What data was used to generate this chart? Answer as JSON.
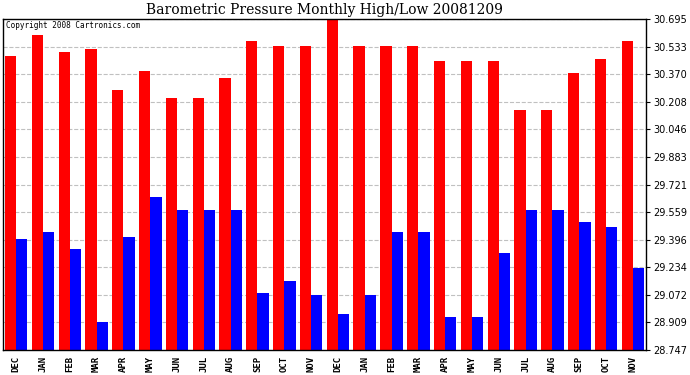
{
  "title": "Barometric Pressure Monthly High/Low 20081209",
  "copyright": "Copyright 2008 Cartronics.com",
  "months": [
    "DEC",
    "JAN",
    "FEB",
    "MAR",
    "APR",
    "MAY",
    "JUN",
    "JUL",
    "AUG",
    "SEP",
    "OCT",
    "NOV",
    "DEC",
    "JAN",
    "FEB",
    "MAR",
    "APR",
    "MAY",
    "JUN",
    "JUL",
    "AUG",
    "SEP",
    "OCT",
    "NOV"
  ],
  "highs": [
    30.48,
    30.6,
    30.5,
    30.52,
    30.28,
    30.39,
    30.23,
    30.23,
    30.35,
    30.57,
    30.54,
    30.54,
    30.7,
    30.54,
    30.54,
    30.54,
    30.45,
    30.45,
    30.45,
    30.16,
    30.16,
    30.38,
    30.46,
    30.57
  ],
  "lows": [
    29.4,
    29.44,
    29.34,
    28.91,
    29.41,
    29.65,
    29.57,
    29.57,
    29.57,
    29.08,
    29.15,
    29.07,
    28.96,
    29.07,
    29.44,
    29.44,
    28.94,
    28.94,
    29.32,
    29.57,
    29.57,
    29.5,
    29.47,
    29.23
  ],
  "high_color": "#FF0000",
  "low_color": "#0000FF",
  "bg_color": "#FFFFFF",
  "grid_color": "#C0C0C0",
  "yticks": [
    28.747,
    28.909,
    29.072,
    29.234,
    29.396,
    29.559,
    29.721,
    29.883,
    30.046,
    30.208,
    30.37,
    30.533,
    30.695
  ],
  "ymin": 28.747,
  "ymax": 30.695
}
